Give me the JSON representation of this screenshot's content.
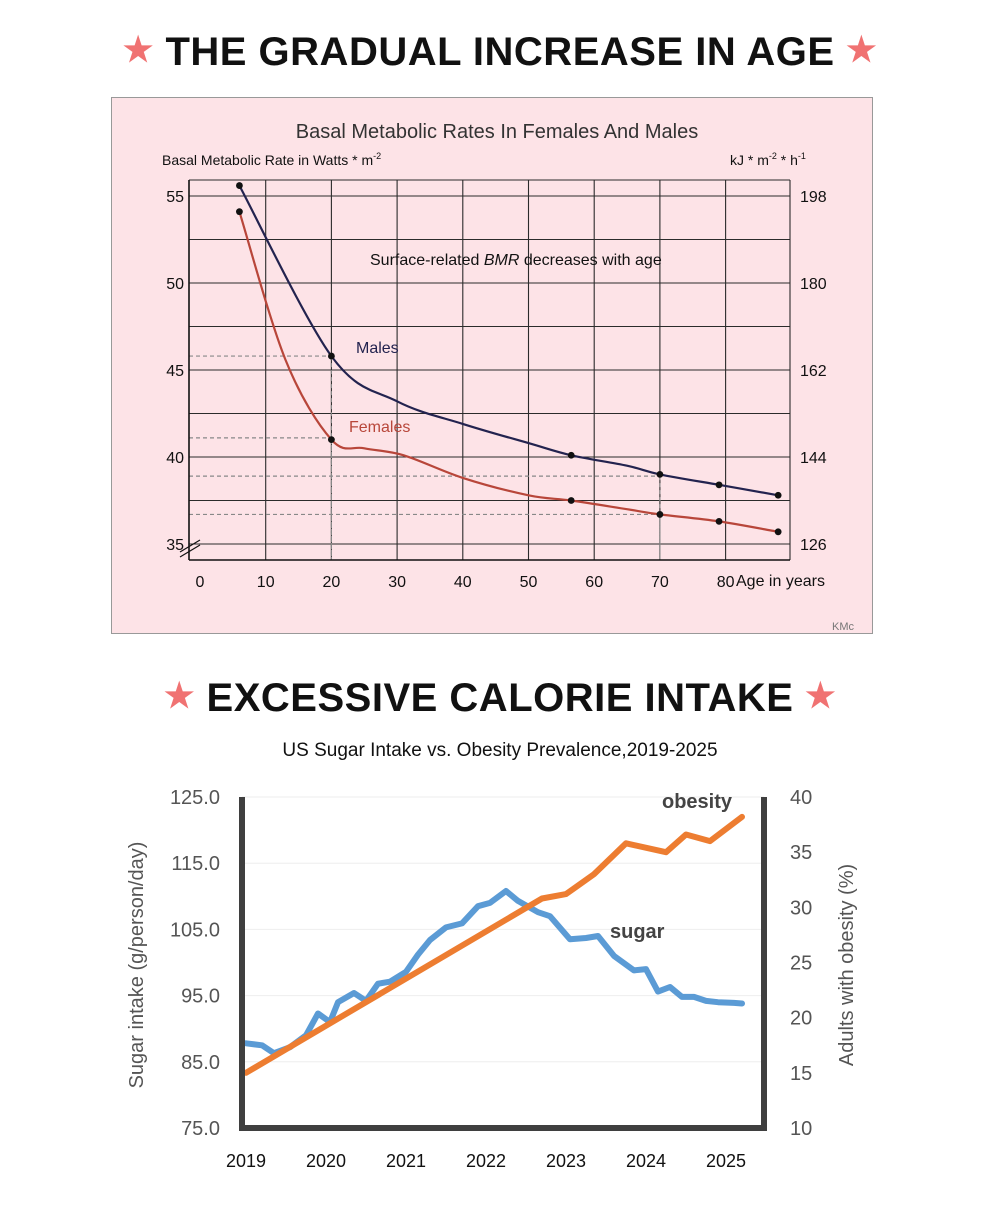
{
  "headings": {
    "age": "THE GRADUAL INCREASE IN AGE",
    "calorie": "EXCESSIVE CALORIE INTAKE",
    "star_glyph": "★"
  },
  "colors": {
    "star": "#f07272",
    "bmr_background": "#fde3e7",
    "males_line": "#23234f",
    "females_line": "#b8463a",
    "sugar_line": "#5b9bd5",
    "obesity_line": "#ed7d31"
  },
  "chart_data": [
    {
      "type": "line",
      "title": "Basal Metabolic Rates In Females And Males",
      "ylabel": "Basal Metabolic Rate in Watts * m",
      "ylabel_superscript": "-2",
      "y2label": "kJ * m",
      "y2label_sup1": "-2",
      "y2label_mid": " * h",
      "y2label_sup2": "-1",
      "xlabel": "Age in years",
      "annotation_prefix": "Surface-related ",
      "annotation_italic": "BMR",
      "annotation_suffix": " decreases with age",
      "credit": "KMc",
      "xlim": [
        0,
        90
      ],
      "ylim": [
        35,
        56
      ],
      "x_ticks": [
        "0",
        "10",
        "20",
        "30",
        "40",
        "50",
        "60",
        "70",
        "80"
      ],
      "y_ticks": [
        "35",
        "40",
        "45",
        "50",
        "55"
      ],
      "y2_ticks": [
        "126",
        "144",
        "162",
        "180",
        "198"
      ],
      "grid": true,
      "series": [
        {
          "name": "Males",
          "x": [
            6,
            20,
            30,
            40,
            50,
            56.5,
            65,
            70,
            79,
            88
          ],
          "y": [
            55.6,
            45.8,
            43.2,
            41.9,
            40.8,
            40.1,
            39.5,
            39.0,
            38.4,
            37.8
          ],
          "markers_x": [
            6,
            20,
            56.5,
            70,
            79,
            88
          ],
          "markers_y": [
            55.6,
            45.8,
            40.1,
            39.0,
            38.4,
            37.8
          ]
        },
        {
          "name": "Females",
          "x": [
            6,
            13,
            20,
            25,
            31,
            40,
            50,
            56.5,
            65,
            70,
            79,
            88
          ],
          "y": [
            54.1,
            45.6,
            41.0,
            40.5,
            40.1,
            38.8,
            37.8,
            37.5,
            37.0,
            36.7,
            36.3,
            35.7
          ],
          "markers_x": [
            6,
            20,
            56.5,
            70,
            79,
            88
          ],
          "markers_y": [
            54.1,
            41.0,
            37.5,
            36.7,
            36.3,
            35.7
          ]
        }
      ],
      "reference_lines": [
        {
          "x": 20,
          "y": 45.8
        },
        {
          "x": 20,
          "y": 41.1
        },
        {
          "x": 70,
          "y": 38.9
        },
        {
          "x": 70,
          "y": 36.7
        }
      ]
    },
    {
      "type": "line",
      "title": "US Sugar Intake vs. Obesity Prevalence,2019-2025",
      "ylabel": "Sugar intake (g/person/day)",
      "y2label": "Adults with obesity (%)",
      "xlim": [
        2019,
        2025.3
      ],
      "ylim": [
        75,
        125
      ],
      "y2lim": [
        10,
        40
      ],
      "x_ticks": [
        "2019",
        "2020",
        "2021",
        "2022",
        "2023",
        "2024",
        "2025"
      ],
      "y_ticks": [
        "75.0",
        "85.0",
        "95.0",
        "105.0",
        "115.0",
        "125.0"
      ],
      "y2_ticks": [
        "10",
        "15",
        "20",
        "25",
        "30",
        "35",
        "40"
      ],
      "series": [
        {
          "name": "sugar",
          "axis": "left",
          "x": [
            2019.0,
            2019.2,
            2019.35,
            2019.55,
            2019.75,
            2019.9,
            2020.05,
            2020.15,
            2020.35,
            2020.5,
            2020.65,
            2020.8,
            2021.0,
            2021.15,
            2021.3,
            2021.5,
            2021.7,
            2021.9,
            2022.05,
            2022.25,
            2022.4,
            2022.65,
            2022.8,
            2023.05,
            2023.25,
            2023.4,
            2023.6,
            2023.85,
            2024.0,
            2024.15,
            2024.3,
            2024.45,
            2024.6,
            2024.75,
            2024.9,
            2025.1,
            2025.2
          ],
          "y": [
            87.8,
            87.5,
            86.3,
            87.2,
            89.0,
            92.3,
            91.0,
            94.0,
            95.4,
            94.2,
            96.8,
            97.1,
            98.6,
            101.2,
            103.4,
            105.3,
            105.9,
            108.5,
            109.0,
            110.8,
            109.3,
            107.6,
            107.0,
            103.5,
            103.7,
            104.0,
            101.0,
            98.8,
            99.0,
            95.6,
            96.3,
            94.8,
            94.8,
            94.2,
            94.0,
            93.9,
            93.8
          ],
          "label_x": 2023.55,
          "label_y": 103.7
        },
        {
          "name": "obesity",
          "axis": "right",
          "x": [
            2019.0,
            2022.7,
            2023.0,
            2023.35,
            2023.75,
            2024.25,
            2024.5,
            2024.8,
            2025.2
          ],
          "y": [
            15.0,
            30.8,
            31.2,
            33.0,
            35.8,
            35.0,
            36.6,
            36.0,
            38.2
          ],
          "label_x": 2024.2,
          "label_y": 39.0
        }
      ]
    }
  ]
}
